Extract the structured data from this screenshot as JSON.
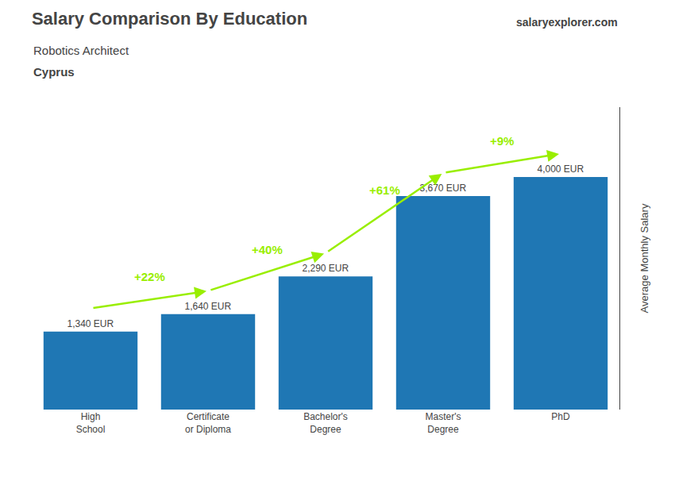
{
  "chart_data": {
    "type": "bar",
    "title": "Salary Comparison By Education",
    "subtitle": [
      "Robotics Architect",
      "Cyprus"
    ],
    "y_label": "Average Monthly Salary",
    "categories": [
      "High\nSchool",
      "Certificate\nor Diploma",
      "Bachelor's\nDegree",
      "Master's\nDegree",
      "PhD"
    ],
    "values": [
      1340,
      1640,
      2290,
      3670,
      4000
    ],
    "value_labels": [
      "1,340 EUR",
      "1,640 EUR",
      "2,290 EUR",
      "3,670 EUR",
      "4,000 EUR"
    ],
    "data_labels": true,
    "ylim": [
      0,
      5200
    ],
    "tick_labels": "x",
    "grid": false,
    "annotations": [
      {
        "text": "+22%",
        "from": "High\nSchool",
        "to": "Certificate\nor Diploma",
        "color": "#99ee00"
      },
      {
        "text": "+40%",
        "from": "Certificate\nor Diploma",
        "to": "Bachelor's\nDegree",
        "color": "#99ee00"
      },
      {
        "text": "+61%",
        "from": "Bachelor's\nDegree",
        "to": "Master's\nDegree",
        "color": "#99ee00"
      },
      {
        "text": "+9%",
        "from": "Master's\nDegree",
        "to": "PhD",
        "color": "#99ee00"
      },
      {
        "text": "salaryexplorer.com"
      }
    ]
  }
}
